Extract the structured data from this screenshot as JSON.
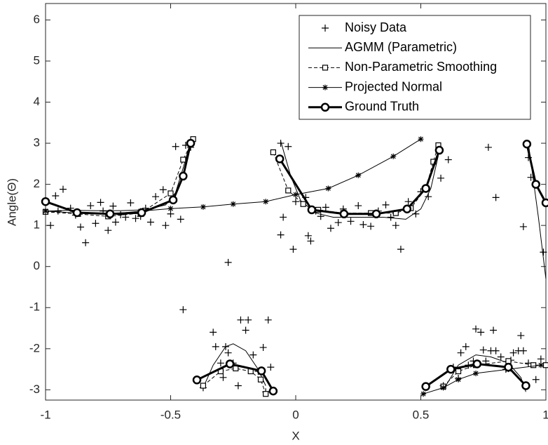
{
  "chart_data": {
    "type": "line",
    "xlabel": "X",
    "ylabel": "Angle(Θ)",
    "xlim": [
      -1,
      1
    ],
    "ylim": [
      -3.25,
      6.4
    ],
    "xticks": [
      -1,
      -0.5,
      0,
      0.5,
      1
    ],
    "yticks": [
      -3,
      -2,
      -1,
      0,
      1,
      2,
      3,
      4,
      5,
      6
    ],
    "legend": "northeast",
    "series": [
      {
        "name": "Noisy Data",
        "color": "#000000",
        "line_style": "none",
        "line_width": 1,
        "marker": "plus",
        "x": [
          -0.98,
          -0.96,
          -0.93,
          -0.95,
          -0.9,
          -0.88,
          -0.86,
          -0.84,
          -0.82,
          -0.8,
          -0.78,
          -0.77,
          -0.75,
          -0.73,
          -0.72,
          -0.7,
          -0.68,
          -0.66,
          -0.64,
          -0.62,
          -0.6,
          -0.58,
          -0.56,
          -0.53,
          -0.52,
          -0.5,
          -0.48,
          -0.46,
          -0.44,
          -0.42,
          -0.45,
          -0.06,
          -0.03,
          -0.05,
          -0.06,
          0.0,
          -0.01,
          0.04,
          0.05,
          0.06,
          0.08,
          0.1,
          0.12,
          0.14,
          0.17,
          0.19,
          0.22,
          0.25,
          0.27,
          0.3,
          0.33,
          0.36,
          0.38,
          0.4,
          0.42,
          0.45,
          0.48,
          0.5,
          0.53,
          0.58,
          0.61,
          0.77,
          0.8,
          0.91,
          0.93,
          0.94,
          0.99,
          -0.27,
          -0.37,
          -0.33,
          -0.32,
          -0.3,
          -0.29,
          -0.27,
          -0.25,
          -0.23,
          -0.22,
          -0.2,
          -0.19,
          -0.17,
          -0.15,
          -0.13,
          -0.12,
          -0.11,
          -0.1,
          -0.28,
          0.59,
          0.63,
          0.65,
          0.66,
          0.68,
          0.69,
          0.71,
          0.72,
          0.74,
          0.75,
          0.76,
          0.78,
          0.79,
          0.8,
          0.82,
          0.84,
          0.86,
          0.87,
          0.89,
          0.9,
          0.91,
          0.93,
          0.96,
          0.98
        ],
        "values": [
          1.0,
          1.72,
          1.88,
          1.35,
          1.42,
          1.25,
          0.96,
          0.58,
          1.48,
          1.05,
          1.56,
          1.35,
          0.88,
          1.47,
          1.08,
          1.26,
          1.2,
          1.55,
          1.17,
          1.22,
          1.42,
          1.08,
          1.7,
          1.87,
          1.0,
          1.28,
          2.92,
          1.15,
          2.95,
          2.9,
          -1.05,
          3.0,
          2.92,
          1.2,
          0.77,
          1.58,
          0.42,
          1.68,
          0.75,
          0.62,
          1.35,
          1.22,
          1.44,
          0.93,
          1.07,
          1.4,
          1.1,
          1.48,
          1.02,
          0.98,
          1.35,
          1.5,
          1.2,
          1.0,
          0.42,
          1.58,
          1.28,
          1.82,
          1.7,
          2.15,
          2.6,
          2.9,
          1.68,
          0.97,
          2.65,
          2.17,
          0.35,
          0.1,
          -2.95,
          -1.6,
          -1.95,
          -2.35,
          -2.7,
          -2.1,
          -2.35,
          -2.9,
          -1.3,
          -1.55,
          -1.3,
          -2.15,
          -2.55,
          -1.97,
          -3.05,
          -1.3,
          -2.45,
          -1.95,
          -2.9,
          -2.45,
          -2.72,
          -2.1,
          -1.95,
          -2.4,
          -2.3,
          -1.52,
          -1.6,
          -2.03,
          -2.3,
          -2.05,
          -1.55,
          -2.05,
          -2.2,
          -2.5,
          -2.28,
          -2.1,
          -2.05,
          -1.68,
          -2.05,
          -2.35,
          -2.75,
          -2.25
        ]
      },
      {
        "name": "AGMM (Parametric)",
        "color": "#000000",
        "line_style": "solid",
        "line_width": 1,
        "marker": "none",
        "x": [
          -1,
          -0.9,
          -0.8,
          -0.7,
          -0.6,
          -0.52,
          -0.48,
          -0.45,
          -0.42,
          null,
          -0.06,
          -0.02,
          0.02,
          0.08,
          0.15,
          0.25,
          0.35,
          0.44,
          0.5,
          0.54,
          0.57,
          null,
          0.93,
          0.97,
          1.0,
          null,
          -0.37,
          -0.33,
          -0.28,
          -0.25,
          -0.2,
          -0.15,
          -0.12,
          null,
          0.6,
          0.65,
          0.72,
          0.78,
          0.85,
          0.9,
          0.92
        ],
        "values": [
          1.35,
          1.37,
          1.36,
          1.36,
          1.38,
          1.5,
          1.8,
          2.4,
          3.05,
          null,
          3.05,
          2.2,
          1.6,
          1.3,
          1.2,
          1.2,
          1.2,
          1.15,
          1.4,
          1.9,
          2.7,
          null,
          3.0,
          1.2,
          -0.3,
          null,
          -2.95,
          -2.4,
          -1.95,
          -1.88,
          -2.05,
          -2.5,
          -2.9,
          null,
          -2.9,
          -2.4,
          -2.15,
          -2.2,
          -2.35,
          -2.7,
          -3.05
        ]
      },
      {
        "name": "Non-Parametric Smoothing",
        "color": "#000000",
        "line_style": "dashed",
        "line_width": 1,
        "marker": "square",
        "x": [
          -1,
          -0.87,
          -0.75,
          -0.62,
          -0.5,
          -0.45,
          -0.41,
          null,
          -0.09,
          -0.03,
          0.03,
          0.09,
          0.19,
          0.3,
          0.4,
          0.46,
          0.52,
          0.55,
          0.57,
          null,
          -0.37,
          -0.3,
          -0.24,
          -0.18,
          -0.14,
          -0.12,
          null,
          0.59,
          0.65,
          0.72,
          0.85,
          0.95,
          1.0
        ],
        "values": [
          1.33,
          1.28,
          1.22,
          1.3,
          1.78,
          2.6,
          3.1,
          null,
          2.78,
          1.85,
          1.52,
          1.38,
          1.3,
          1.3,
          1.3,
          1.42,
          1.9,
          2.55,
          2.95,
          null,
          -2.9,
          -2.55,
          -2.48,
          -2.55,
          -2.75,
          -3.1,
          null,
          -2.92,
          -2.55,
          -2.4,
          -2.3,
          -2.4,
          -2.4
        ]
      },
      {
        "name": "Projected Normal",
        "color": "#000000",
        "line_style": "solid",
        "line_width": 1,
        "marker": "star",
        "x": [
          -1,
          -0.87,
          -0.75,
          -0.62,
          -0.5,
          -0.37,
          -0.25,
          -0.12,
          0.0,
          0.13,
          0.25,
          0.39,
          0.5,
          null,
          0.51,
          0.59,
          0.65,
          0.72,
          0.85,
          0.98
        ],
        "values": [
          1.35,
          1.3,
          1.27,
          1.35,
          1.41,
          1.45,
          1.52,
          1.58,
          1.75,
          1.9,
          2.22,
          2.68,
          3.1,
          null,
          -3.1,
          -2.95,
          -2.75,
          -2.6,
          -2.5,
          -2.4
        ]
      },
      {
        "name": "Ground Truth",
        "color": "#000000",
        "line_style": "solid",
        "line_width": 3,
        "marker": "circle",
        "x": [
          -1,
          -0.874,
          -0.742,
          -0.616,
          -0.49,
          -0.45,
          -0.42,
          null,
          -0.064,
          0.064,
          0.193,
          0.322,
          0.445,
          0.52,
          0.574,
          null,
          0.924,
          0.96,
          1.0,
          null,
          -0.395,
          -0.263,
          -0.137,
          -0.09,
          null,
          0.52,
          0.62,
          0.725,
          0.85,
          0.92
        ],
        "values": [
          1.58,
          1.31,
          1.28,
          1.31,
          1.62,
          2.2,
          3.0,
          null,
          2.62,
          1.38,
          1.28,
          1.28,
          1.4,
          1.9,
          2.83,
          null,
          2.98,
          2.0,
          1.55,
          null,
          -2.76,
          -2.37,
          -2.54,
          -3.03,
          null,
          -2.92,
          -2.5,
          -2.37,
          -2.45,
          -2.9
        ]
      }
    ]
  }
}
